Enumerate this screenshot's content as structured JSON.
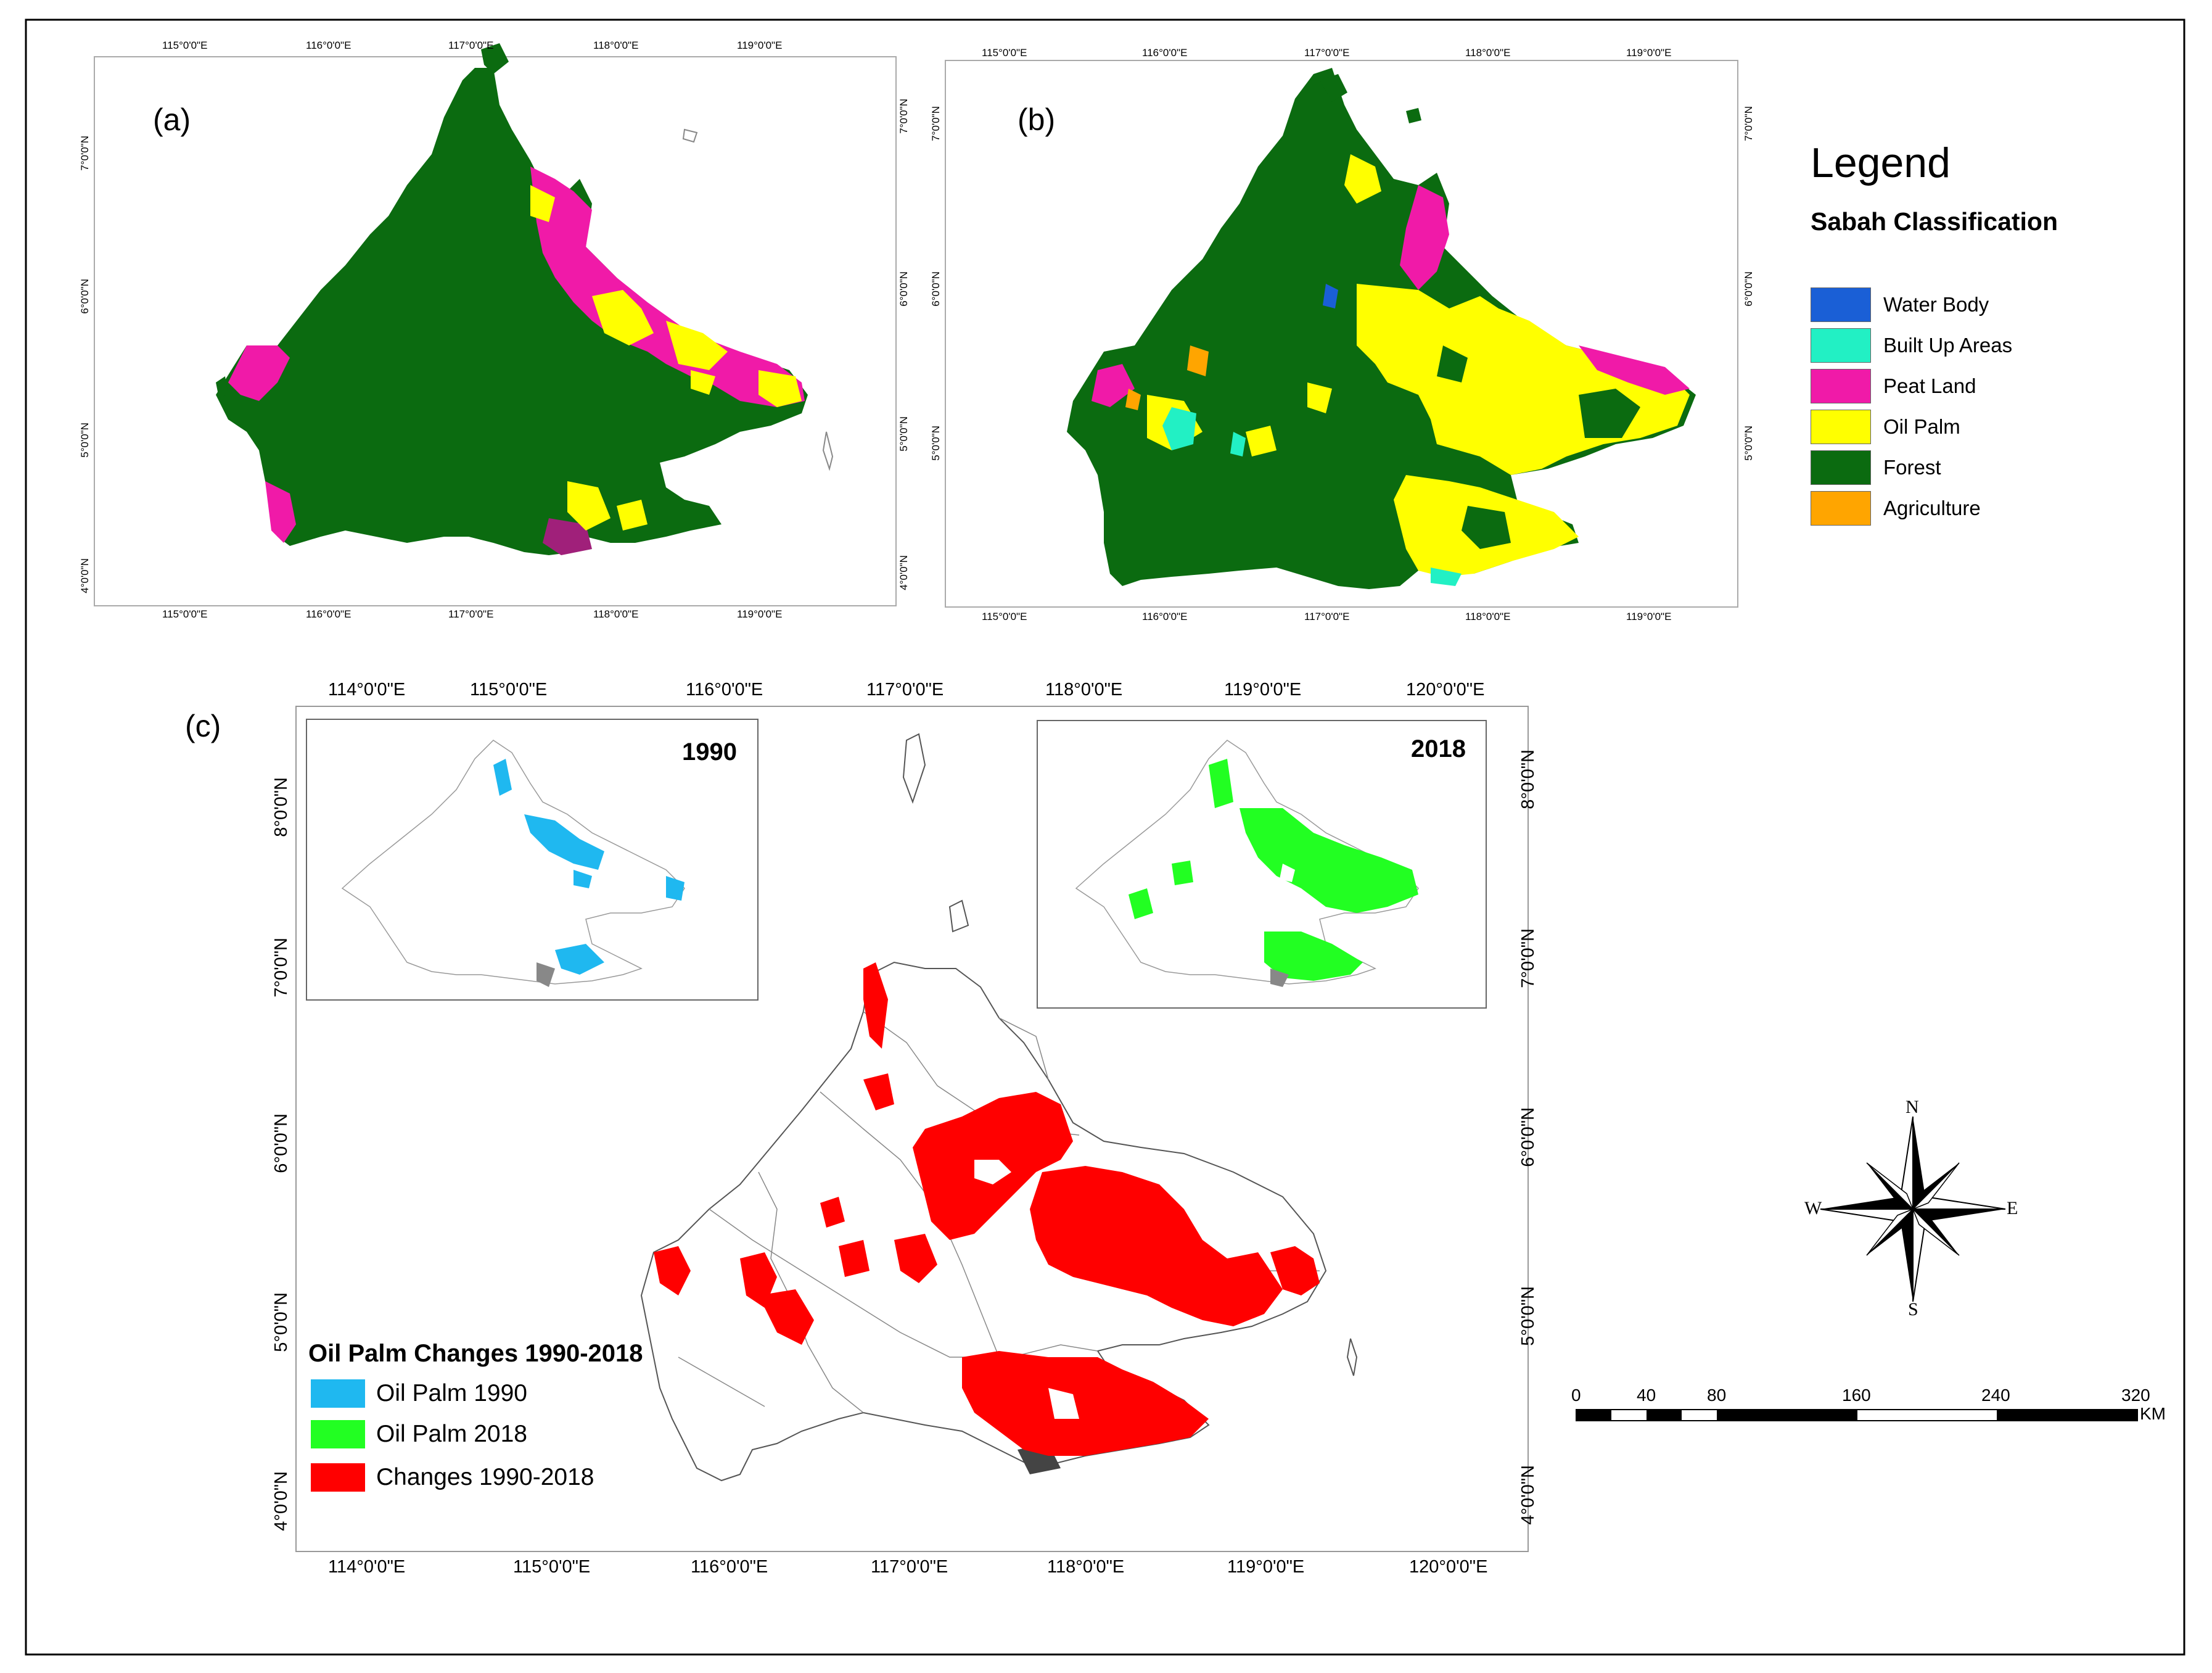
{
  "panels": {
    "a": {
      "tag": "(a)"
    },
    "b": {
      "tag": "(b)"
    },
    "c": {
      "tag": "(c)"
    }
  },
  "ticks_ab": {
    "lon": [
      "115°0'0\"E",
      "116°0'0\"E",
      "117°0'0\"E",
      "118°0'0\"E",
      "119°0'0\"E"
    ],
    "lat": [
      "7°0'0\"N",
      "6°0'0\"N",
      "5°0'0\"N",
      "4°0'0\"N"
    ]
  },
  "ticks_c": {
    "lon": [
      "114°0'0\"E",
      "115°0'0\"E",
      "116°0'0\"E",
      "117°0'0\"E",
      "118°0'0\"E",
      "119°0'0\"E",
      "120°0'0\"E"
    ],
    "lat": [
      "8°0'0\"N",
      "7°0'0\"N",
      "6°0'0\"N",
      "5°0'0\"N",
      "4°0'0\"N"
    ]
  },
  "legend": {
    "title": "Legend",
    "subtitle": "Sabah Classification",
    "items": [
      {
        "label": "Water Body",
        "color": "#1a5fd6"
      },
      {
        "label": "Built Up Areas",
        "color": "#22f0c4"
      },
      {
        "label": "Peat Land",
        "color": "#f01aa8"
      },
      {
        "label": "Oil Palm",
        "color": "#ffff00"
      },
      {
        "label": "Forest",
        "color": "#0b6b10"
      },
      {
        "label": "Agriculture",
        "color": "#ffa500"
      }
    ]
  },
  "insets": {
    "left_year": "1990",
    "right_year": "2018"
  },
  "change_legend": {
    "title": "Oil Palm Changes 1990-2018",
    "items": [
      {
        "label": "Oil Palm 1990",
        "color": "#1fb8f0"
      },
      {
        "label": "Oil Palm 2018",
        "color": "#22ff22"
      },
      {
        "label": "Changes 1990-2018",
        "color": "#ff0000"
      }
    ]
  },
  "compass": {
    "n": "N",
    "s": "S",
    "e": "E",
    "w": "W"
  },
  "scale_bar": {
    "ticks": [
      "0",
      "40",
      "80",
      "160",
      "240",
      "320"
    ],
    "unit": "KM"
  }
}
